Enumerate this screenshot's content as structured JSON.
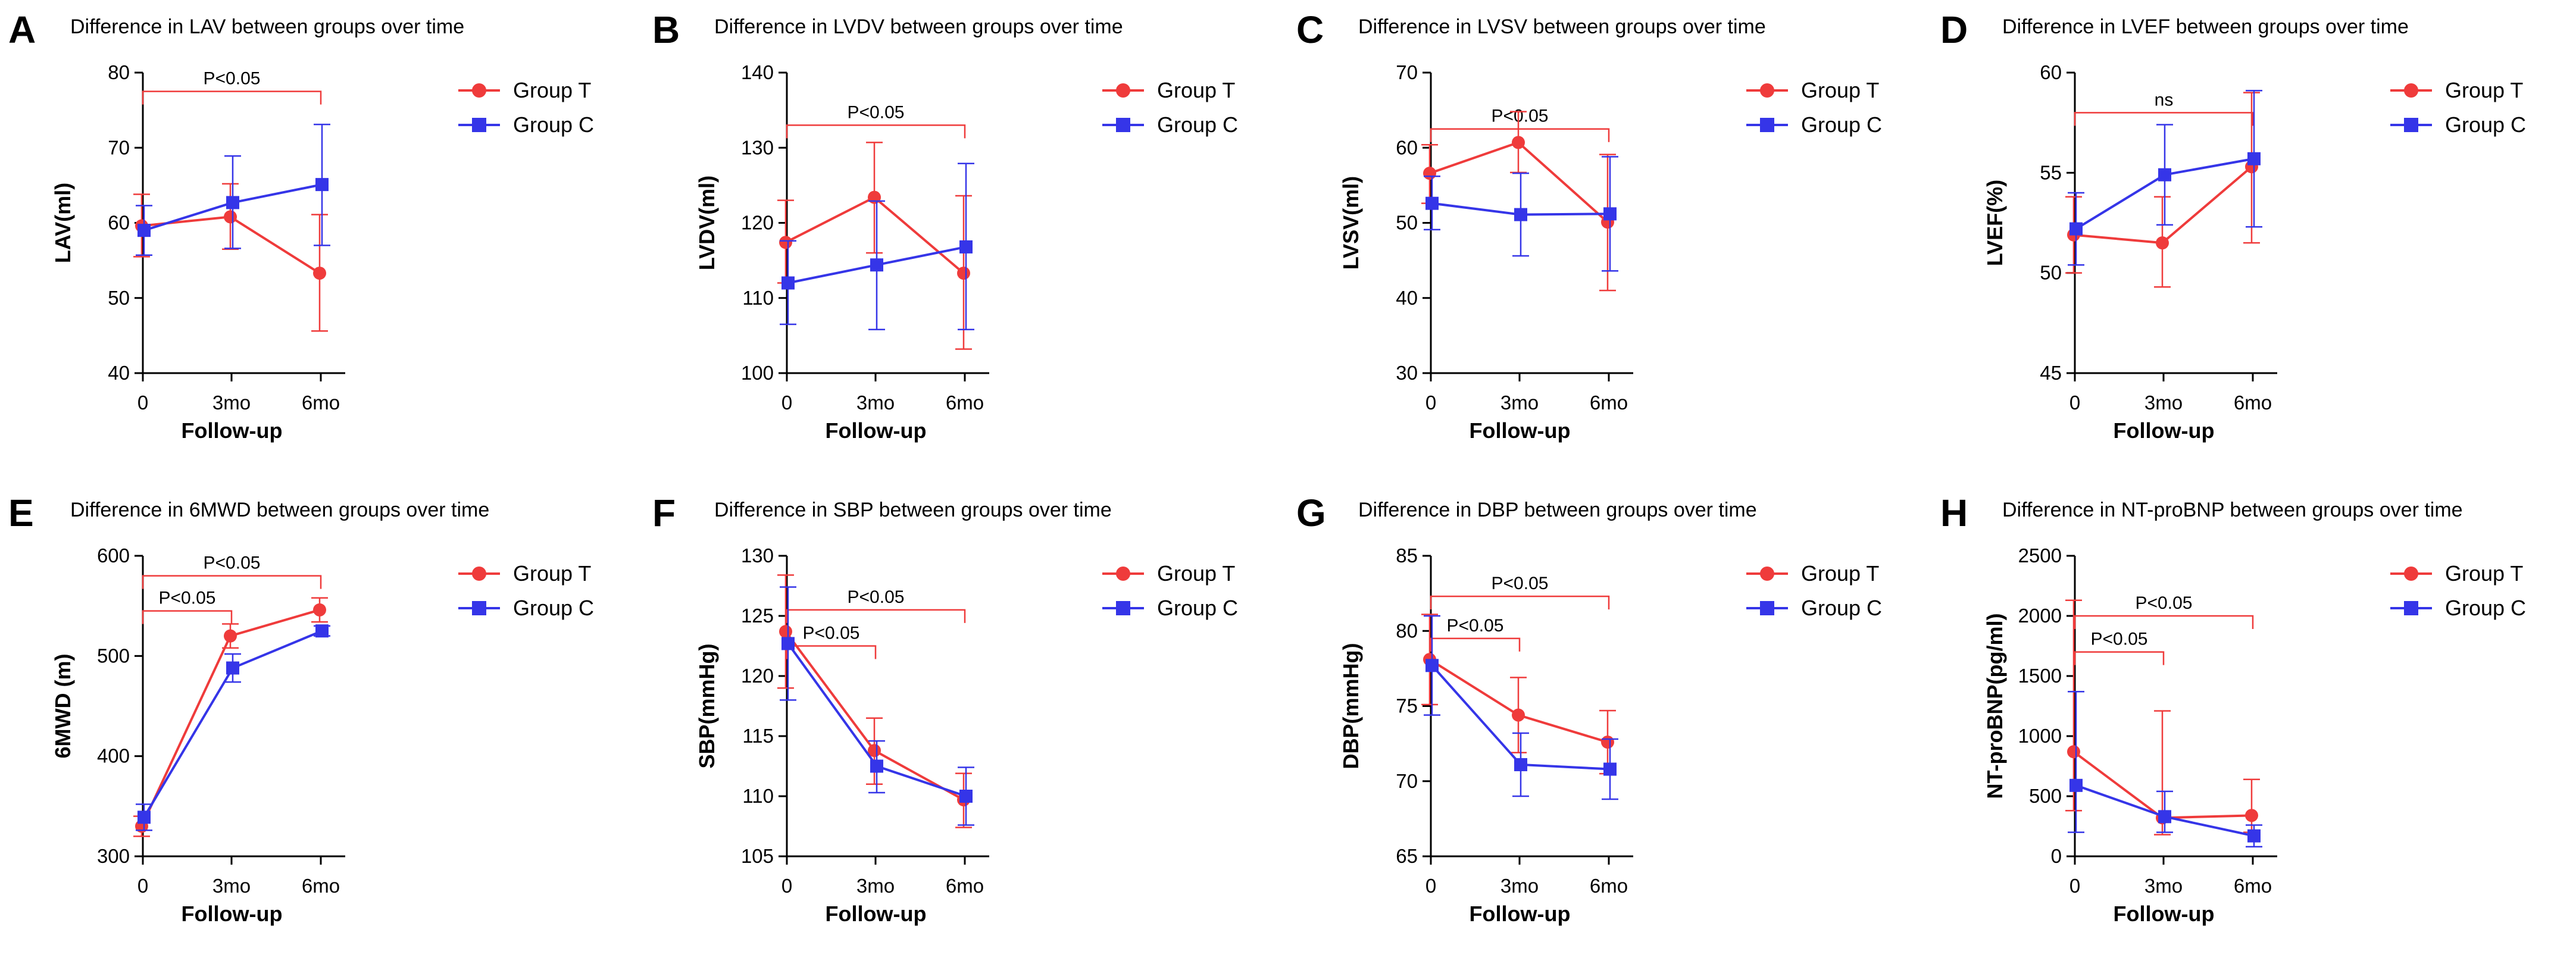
{
  "figure": {
    "legend": [
      {
        "name": "Group T",
        "color": "#ef3b3b",
        "marker": "circle"
      },
      {
        "name": "Group C",
        "color": "#3535e8",
        "marker": "square"
      }
    ],
    "xlabel": "Follow-up",
    "categories": [
      "0",
      "3mo",
      "6mo"
    ]
  },
  "chart_data": [
    {
      "panel": "A",
      "type": "line",
      "title": "Difference in LAV between groups over time",
      "xlabel": "Follow-up",
      "ylabel": "LAV(ml)",
      "categories": [
        "0",
        "3mo",
        "6mo"
      ],
      "ylim": [
        40,
        80
      ],
      "yticks": [
        40,
        50,
        60,
        70,
        80
      ],
      "series": [
        {
          "name": "Group T",
          "values": [
            59.6,
            60.8,
            53.3
          ],
          "err_low": [
            55.5,
            56.5,
            45.6
          ],
          "err_high": [
            63.8,
            65.2,
            61.1
          ]
        },
        {
          "name": "Group C",
          "values": [
            59.0,
            62.7,
            65.1
          ],
          "err_low": [
            55.7,
            56.6,
            57.0
          ],
          "err_high": [
            62.3,
            68.9,
            73.1
          ]
        }
      ],
      "brackets": [
        {
          "label": "P<0.05",
          "from": 0,
          "to": 2,
          "y": 77.5
        }
      ]
    },
    {
      "panel": "B",
      "type": "line",
      "title": "Difference in LVDV between groups over time",
      "xlabel": "Follow-up",
      "ylabel": "LVDV(ml)",
      "categories": [
        "0",
        "3mo",
        "6mo"
      ],
      "ylim": [
        100,
        140
      ],
      "yticks": [
        100,
        110,
        120,
        130,
        140
      ],
      "series": [
        {
          "name": "Group T",
          "values": [
            117.4,
            123.4,
            113.3
          ],
          "err_low": [
            112.0,
            116.0,
            103.2
          ],
          "err_high": [
            123.0,
            130.7,
            123.6
          ]
        },
        {
          "name": "Group C",
          "values": [
            112.0,
            114.4,
            116.8
          ],
          "err_low": [
            106.5,
            105.8,
            105.8
          ],
          "err_high": [
            117.6,
            122.9,
            127.9
          ]
        }
      ],
      "brackets": [
        {
          "label": "P<0.05",
          "from": 0,
          "to": 2,
          "y": 133
        }
      ]
    },
    {
      "panel": "C",
      "type": "line",
      "title": "Difference in LVSV between groups over time",
      "xlabel": "Follow-up",
      "ylabel": "LVSV(ml)",
      "categories": [
        "0",
        "3mo",
        "6mo"
      ],
      "ylim": [
        30,
        70
      ],
      "yticks": [
        30,
        40,
        50,
        60,
        70
      ],
      "series": [
        {
          "name": "Group T",
          "values": [
            56.6,
            60.7,
            50.1
          ],
          "err_low": [
            52.6,
            56.7,
            41.0
          ],
          "err_high": [
            60.4,
            64.8,
            59.1
          ]
        },
        {
          "name": "Group C",
          "values": [
            52.6,
            51.1,
            51.2
          ],
          "err_low": [
            49.1,
            45.6,
            43.6
          ],
          "err_high": [
            56.2,
            56.6,
            58.8
          ]
        }
      ],
      "brackets": [
        {
          "label": "P<0.05",
          "from": 0,
          "to": 2,
          "y": 62.5
        }
      ]
    },
    {
      "panel": "D",
      "type": "line",
      "title": "Difference in LVEF between groups over time",
      "xlabel": "Follow-up",
      "ylabel": "LVEF(%)",
      "categories": [
        "0",
        "3mo",
        "6mo"
      ],
      "ylim": [
        45,
        60
      ],
      "yticks": [
        45,
        50,
        55,
        60
      ],
      "series": [
        {
          "name": "Group T",
          "values": [
            51.9,
            51.5,
            55.3
          ],
          "err_low": [
            50.0,
            49.3,
            51.5
          ],
          "err_high": [
            53.8,
            53.8,
            59.0
          ]
        },
        {
          "name": "Group C",
          "values": [
            52.2,
            54.9,
            55.7
          ],
          "err_low": [
            50.4,
            52.4,
            52.3
          ],
          "err_high": [
            54.0,
            57.4,
            59.1
          ]
        }
      ],
      "brackets": [
        {
          "label": "ns",
          "from": 0,
          "to": 2,
          "y": 58
        }
      ]
    },
    {
      "panel": "E",
      "type": "line",
      "title": "Difference in 6MWD between groups over time",
      "xlabel": "Follow-up",
      "ylabel": "6MWD (m)",
      "categories": [
        "0",
        "3mo",
        "6mo"
      ],
      "ylim": [
        300,
        600
      ],
      "yticks": [
        300,
        400,
        500,
        600
      ],
      "series": [
        {
          "name": "Group T",
          "values": [
            330,
            520,
            546
          ],
          "err_low": [
            320,
            508,
            534
          ],
          "err_high": [
            340,
            532,
            558
          ]
        },
        {
          "name": "Group C",
          "values": [
            339,
            488,
            525
          ],
          "err_low": [
            326,
            474,
            520
          ],
          "err_high": [
            352,
            502,
            530
          ]
        }
      ],
      "brackets": [
        {
          "label": "P<0.05",
          "from": 0,
          "to": 1,
          "y": 545
        },
        {
          "label": "P<0.05",
          "from": 0,
          "to": 2,
          "y": 580
        }
      ]
    },
    {
      "panel": "F",
      "type": "line",
      "title": "Difference in SBP between groups over time",
      "xlabel": "Follow-up",
      "ylabel": "SBP(mmHg)",
      "categories": [
        "0",
        "3mo",
        "6mo"
      ],
      "ylim": [
        105,
        130
      ],
      "yticks": [
        105,
        110,
        115,
        120,
        125,
        130
      ],
      "series": [
        {
          "name": "Group T",
          "values": [
            123.7,
            113.8,
            109.7
          ],
          "err_low": [
            119.0,
            111.0,
            107.4
          ],
          "err_high": [
            128.4,
            116.5,
            111.9
          ]
        },
        {
          "name": "Group C",
          "values": [
            122.7,
            112.5,
            110.0
          ],
          "err_low": [
            118.0,
            110.3,
            107.6
          ],
          "err_high": [
            127.4,
            114.6,
            112.4
          ]
        }
      ],
      "brackets": [
        {
          "label": "P<0.05",
          "from": 0,
          "to": 1,
          "y": 122.5
        },
        {
          "label": "P<0.05",
          "from": 0,
          "to": 2,
          "y": 125.5
        }
      ]
    },
    {
      "panel": "G",
      "type": "line",
      "title": "Difference in DBP between groups over time",
      "xlabel": "Follow-up",
      "ylabel": "DBP(mmHg)",
      "categories": [
        "0",
        "3mo",
        "6mo"
      ],
      "ylim": [
        65,
        85
      ],
      "yticks": [
        65,
        70,
        75,
        80,
        85
      ],
      "series": [
        {
          "name": "Group T",
          "values": [
            78.1,
            74.4,
            72.6
          ],
          "err_low": [
            75.1,
            71.9,
            70.5
          ],
          "err_high": [
            81.1,
            76.9,
            74.7
          ]
        },
        {
          "name": "Group C",
          "values": [
            77.7,
            71.1,
            70.8
          ],
          "err_low": [
            74.4,
            69.0,
            68.8
          ],
          "err_high": [
            81.0,
            73.2,
            72.8
          ]
        }
      ],
      "brackets": [
        {
          "label": "P<0.05",
          "from": 0,
          "to": 1,
          "y": 79.5
        },
        {
          "label": "P<0.05",
          "from": 0,
          "to": 2,
          "y": 82.3
        }
      ]
    },
    {
      "panel": "H",
      "type": "line",
      "title": "Difference in NT-proBNP between groups over time",
      "xlabel": "Follow-up",
      "ylabel": "NT-proBNP(pg/ml)",
      "categories": [
        "0",
        "3mo",
        "6mo"
      ],
      "ylim": [
        0,
        2500
      ],
      "yticks": [
        0,
        500,
        1000,
        1500,
        2000,
        2500
      ],
      "series": [
        {
          "name": "Group T",
          "values": [
            870,
            320,
            340
          ],
          "err_low": [
            380,
            180,
            200
          ],
          "err_high": [
            2130,
            1210,
            640
          ]
        },
        {
          "name": "Group C",
          "values": [
            590,
            330,
            170
          ],
          "err_low": [
            200,
            200,
            80
          ],
          "err_high": [
            1370,
            540,
            260
          ]
        }
      ],
      "brackets": [
        {
          "label": "P<0.05",
          "from": 0,
          "to": 1,
          "y": 1700
        },
        {
          "label": "P<0.05",
          "from": 0,
          "to": 2,
          "y": 2000
        }
      ]
    }
  ]
}
